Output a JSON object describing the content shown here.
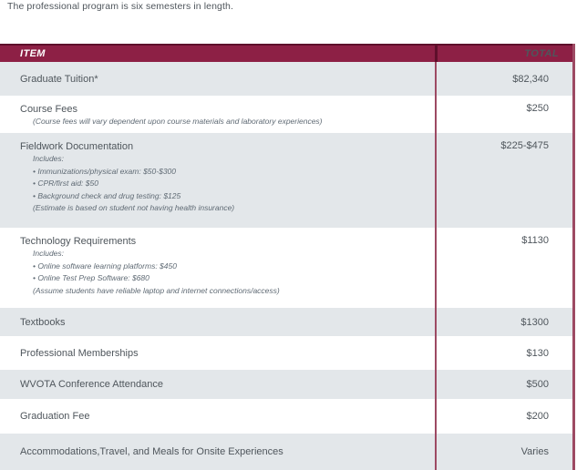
{
  "intro": "The professional program is six semesters in length.",
  "table": {
    "headers": {
      "item": "ITEM",
      "total": "TOTAL"
    },
    "rows": [
      {
        "item": "Graduate Tuition*",
        "total": "$82,340",
        "subs": []
      },
      {
        "item": "Course Fees",
        "total": "$250",
        "subs": [
          "(Course fees will vary dependent upon course materials and laboratory experiences)"
        ]
      },
      {
        "item": "Fieldwork Documentation",
        "total": "$225-$475",
        "subs": [
          "Includes:",
          "• Immunizations/physical exam: $50-$300",
          "• CPR/first aid: $50",
          "• Background check and drug testing: $125",
          "(Estimate is based on student not having health insurance)"
        ]
      },
      {
        "item": "Technology Requirements",
        "total": "$1130",
        "subs": [
          "Includes:",
          "• Online software learning platforms: $450",
          "• Online Test Prep Software: $680",
          "(Assume students have reliable laptop and internet connections/access)"
        ]
      },
      {
        "item": "Textbooks",
        "total": "$1300",
        "subs": []
      },
      {
        "item": "Professional Memberships",
        "total": "$130",
        "subs": []
      },
      {
        "item": "WVOTA Conference Attendance",
        "total": "$500",
        "subs": []
      },
      {
        "item": "Graduation Fee",
        "total": "$200",
        "subs": []
      },
      {
        "item": "Accommodations,Travel, and Meals for Onsite Experiences",
        "total": "Varies",
        "subs": []
      }
    ]
  },
  "colors": {
    "header_bg": "#8d2045",
    "header_accent": "#5e0f2b",
    "header_text": "#ffffff",
    "divider": "#9d4a63",
    "row_alt": "#e3e7ea",
    "text": "#4f565c",
    "subtext": "#5f6a74"
  }
}
